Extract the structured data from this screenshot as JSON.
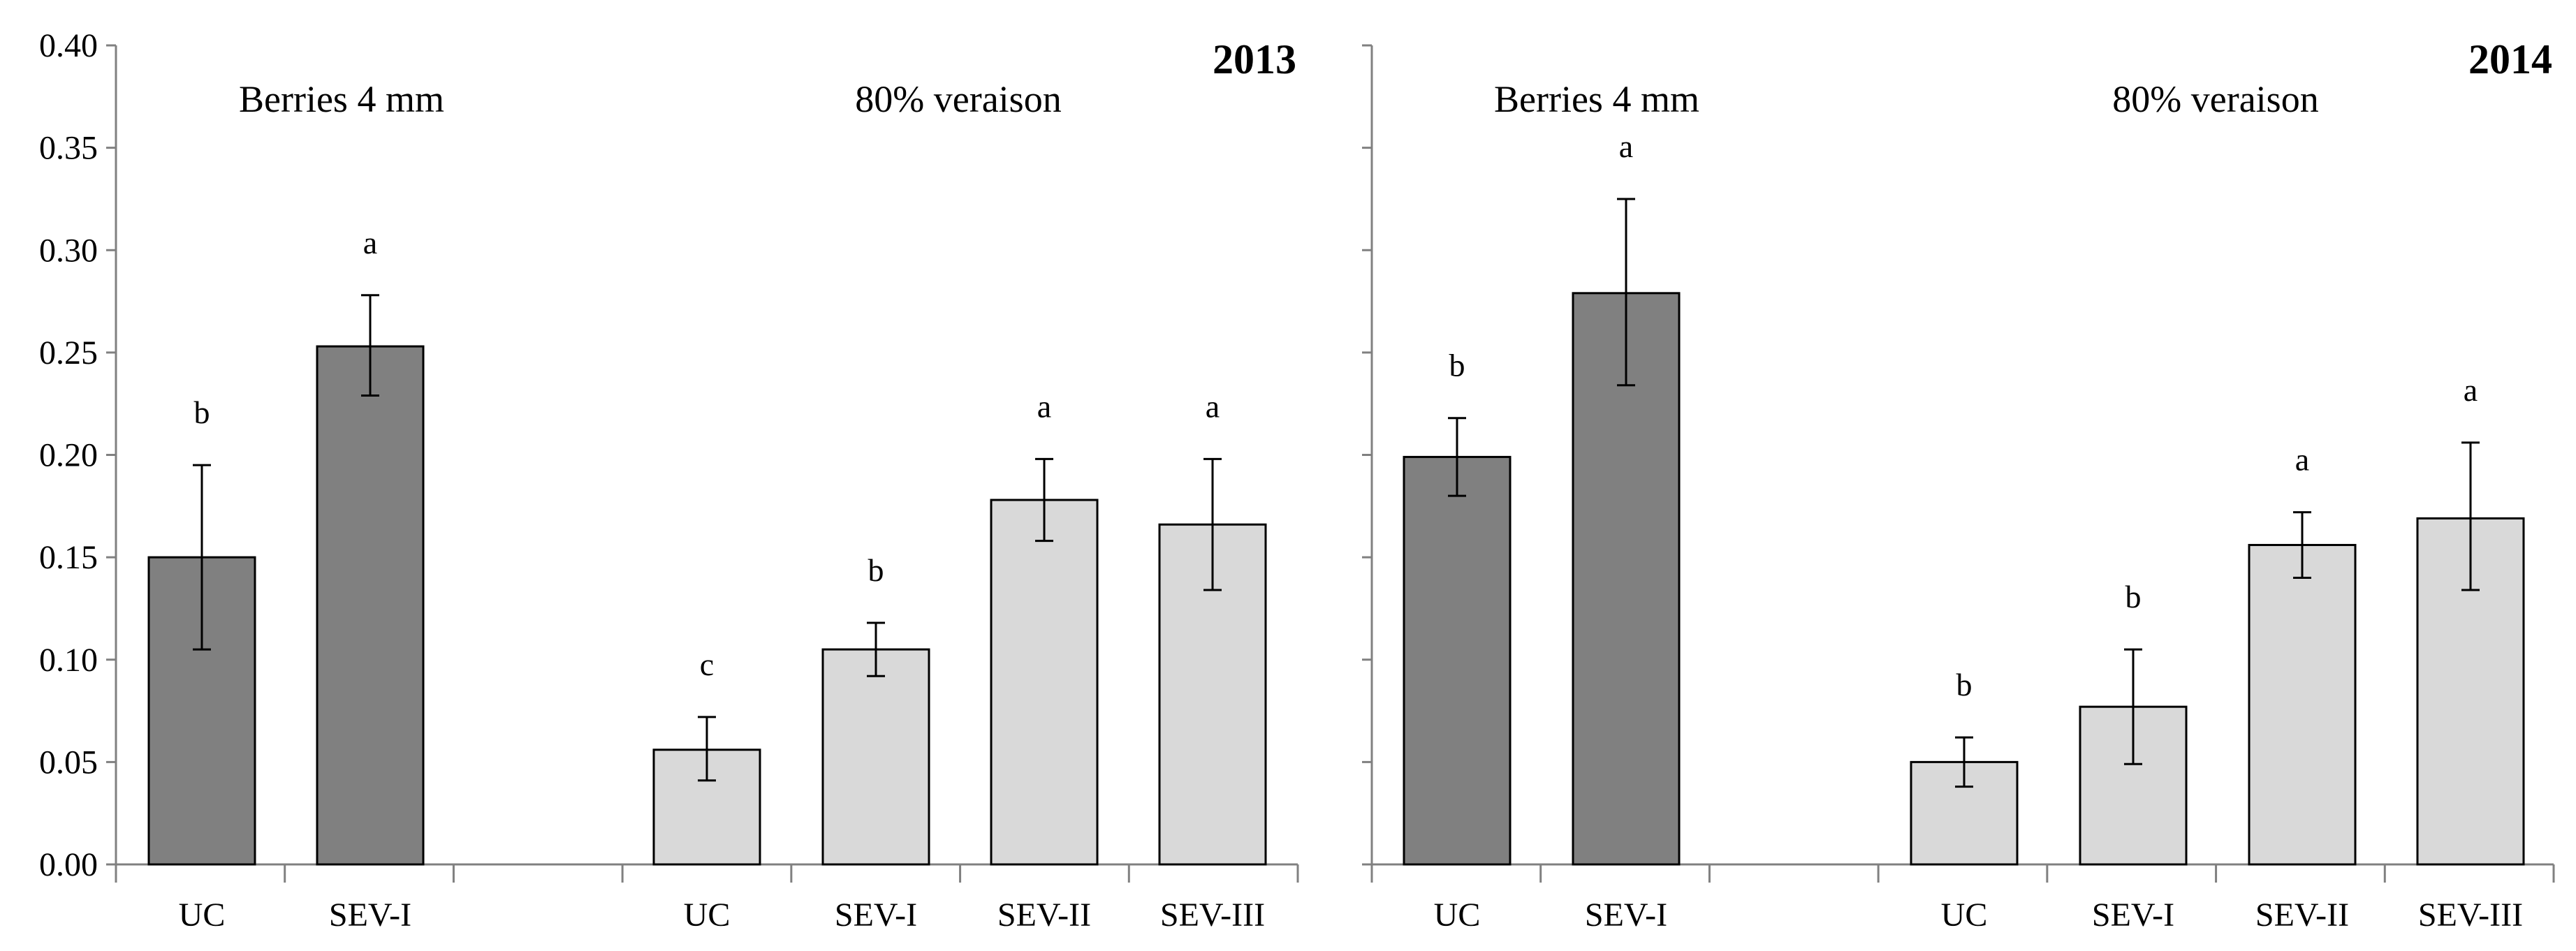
{
  "chart_data": [
    {
      "type": "bar",
      "title": "2013",
      "xlabel": "",
      "ylabel": "",
      "ylim": [
        0,
        0.4
      ],
      "yticks": [
        "0.00",
        "0.05",
        "0.10",
        "0.15",
        "0.20",
        "0.25",
        "0.30",
        "0.35",
        "0.40"
      ],
      "grid": false,
      "groups": [
        {
          "label": "Berries 4 mm",
          "color": "#808080",
          "bars": [
            {
              "category": "UC",
              "value": 0.15,
              "err_low": 0.105,
              "err_high": 0.195,
              "letter": "b"
            },
            {
              "category": "SEV-I",
              "value": 0.253,
              "err_low": 0.229,
              "err_high": 0.278,
              "letter": "a"
            }
          ]
        },
        {
          "label": "80% veraison",
          "color": "#d9d9d9",
          "bars": [
            {
              "category": "UC",
              "value": 0.056,
              "err_low": 0.041,
              "err_high": 0.072,
              "letter": "c"
            },
            {
              "category": "SEV-I",
              "value": 0.105,
              "err_low": 0.092,
              "err_high": 0.118,
              "letter": "b"
            },
            {
              "category": "SEV-II",
              "value": 0.178,
              "err_low": 0.158,
              "err_high": 0.198,
              "letter": "a"
            },
            {
              "category": "SEV-III",
              "value": 0.166,
              "err_low": 0.134,
              "err_high": 0.198,
              "letter": "a"
            }
          ]
        }
      ]
    },
    {
      "type": "bar",
      "title": "2014",
      "xlabel": "",
      "ylabel": "",
      "ylim": [
        0,
        0.4
      ],
      "grid": false,
      "groups": [
        {
          "label": "Berries 4 mm",
          "color": "#808080",
          "bars": [
            {
              "category": "UC",
              "value": 0.199,
              "err_low": 0.18,
              "err_high": 0.218,
              "letter": "b"
            },
            {
              "category": "SEV-I",
              "value": 0.279,
              "err_low": 0.234,
              "err_high": 0.325,
              "letter": "a"
            }
          ]
        },
        {
          "label": "80% veraison",
          "color": "#d9d9d9",
          "bars": [
            {
              "category": "UC",
              "value": 0.05,
              "err_low": 0.038,
              "err_high": 0.062,
              "letter": "b"
            },
            {
              "category": "SEV-I",
              "value": 0.077,
              "err_low": 0.049,
              "err_high": 0.105,
              "letter": "b"
            },
            {
              "category": "SEV-II",
              "value": 0.156,
              "err_low": 0.14,
              "err_high": 0.172,
              "letter": "a"
            },
            {
              "category": "SEV-III",
              "value": 0.169,
              "err_low": 0.134,
              "err_high": 0.206,
              "letter": "a"
            }
          ]
        }
      ]
    }
  ]
}
